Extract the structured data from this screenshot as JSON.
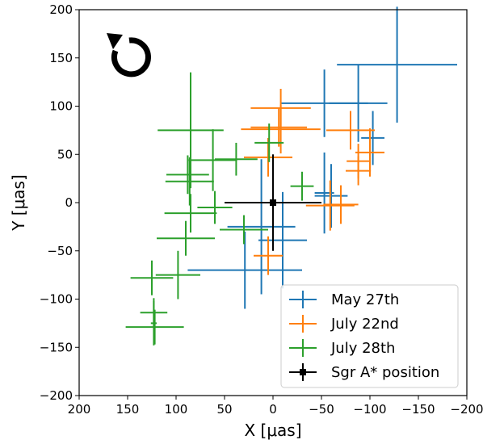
{
  "chart_data": {
    "type": "scatter",
    "xlabel": "X [μas]",
    "ylabel": "Y [μas]",
    "xlim": [
      200,
      -200
    ],
    "ylim": [
      -200,
      200
    ],
    "xticks": [
      200,
      150,
      100,
      50,
      0,
      -50,
      -100,
      -150,
      -200
    ],
    "yticks": [
      -200,
      -150,
      -100,
      -50,
      0,
      50,
      100,
      150,
      200
    ],
    "xtick_labels": [
      "200",
      "150",
      "100",
      "50",
      "0",
      "−50",
      "−100",
      "−150",
      "−200"
    ],
    "ytick_labels": [
      "−200",
      "−150",
      "−100",
      "−50",
      "0",
      "50",
      "100",
      "150",
      "200"
    ],
    "rotation_icon": "clockwise-arrow-icon",
    "legend_position": "lower-right",
    "series": [
      {
        "name": "May 27th",
        "color": "#1f77b4",
        "points": [
          {
            "x": -128,
            "y": 143,
            "xerr": 62,
            "yerr": 60
          },
          {
            "x": -88,
            "y": 103,
            "xerr": 30,
            "yerr": 40
          },
          {
            "x": -53,
            "y": 103,
            "xerr": 45,
            "yerr": 35
          },
          {
            "x": -103,
            "y": 67,
            "xerr": 12,
            "yerr": 28
          },
          {
            "x": -53,
            "y": 10,
            "xerr": 10,
            "yerr": 42
          },
          {
            "x": -60,
            "y": 7,
            "xerr": 17,
            "yerr": 33
          },
          {
            "x": -10,
            "y": -39,
            "xerr": 25,
            "yerr": 50
          },
          {
            "x": 29,
            "y": -70,
            "xerr": 59,
            "yerr": 40
          },
          {
            "x": 12,
            "y": -25,
            "xerr": 35,
            "yerr": 70
          }
        ]
      },
      {
        "name": "July 22nd",
        "color": "#ff7f0e",
        "points": [
          {
            "x": -8,
            "y": 98,
            "xerr": 31,
            "yerr": 20
          },
          {
            "x": -6,
            "y": 78,
            "xerr": 29,
            "yerr": 20
          },
          {
            "x": -8,
            "y": 76,
            "xerr": 41,
            "yerr": 25
          },
          {
            "x": -80,
            "y": 75,
            "xerr": 25,
            "yerr": 20
          },
          {
            "x": -100,
            "y": 52,
            "xerr": 15,
            "yerr": 25
          },
          {
            "x": -88,
            "y": 43,
            "xerr": 12,
            "yerr": 18
          },
          {
            "x": -88,
            "y": 33,
            "xerr": 13,
            "yerr": 15
          },
          {
            "x": -59,
            "y": -3,
            "xerr": 25,
            "yerr": 26
          },
          {
            "x": -70,
            "y": -2,
            "xerr": 18,
            "yerr": 20
          },
          {
            "x": 5,
            "y": -55,
            "xerr": 15,
            "yerr": 20
          },
          {
            "x": 5,
            "y": 47,
            "xerr": 25,
            "yerr": 20
          }
        ]
      },
      {
        "name": "July 28th",
        "color": "#2ca02c",
        "points": [
          {
            "x": 85,
            "y": 75,
            "xerr": 34,
            "yerr": 60
          },
          {
            "x": 62,
            "y": 44,
            "xerr": 25,
            "yerr": 32
          },
          {
            "x": 88,
            "y": 29,
            "xerr": 22,
            "yerr": 20
          },
          {
            "x": 86,
            "y": 22,
            "xerr": 25,
            "yerr": 25
          },
          {
            "x": 38,
            "y": 45,
            "xerr": 22,
            "yerr": 17
          },
          {
            "x": 4,
            "y": 62,
            "xerr": 15,
            "yerr": 20
          },
          {
            "x": -30,
            "y": 17,
            "xerr": 12,
            "yerr": 15
          },
          {
            "x": 60,
            "y": -5,
            "xerr": 18,
            "yerr": 17
          },
          {
            "x": 85,
            "y": -11,
            "xerr": 27,
            "yerr": 20
          },
          {
            "x": 90,
            "y": -37,
            "xerr": 30,
            "yerr": 18
          },
          {
            "x": 30,
            "y": -28,
            "xerr": 25,
            "yerr": 15
          },
          {
            "x": 98,
            "y": -75,
            "xerr": 23,
            "yerr": 25
          },
          {
            "x": 125,
            "y": -78,
            "xerr": 22,
            "yerr": 18
          },
          {
            "x": 123,
            "y": -114,
            "xerr": 14,
            "yerr": 15
          },
          {
            "x": 122,
            "y": -129,
            "xerr": 30,
            "yerr": 18
          },
          {
            "x": 123,
            "y": -125,
            "xerr": 3,
            "yerr": 23
          }
        ]
      },
      {
        "name": "Sgr A* position",
        "color": "#000000",
        "points": [
          {
            "x": 0,
            "y": 0,
            "xerr": 50,
            "yerr": 50
          }
        ]
      }
    ]
  }
}
